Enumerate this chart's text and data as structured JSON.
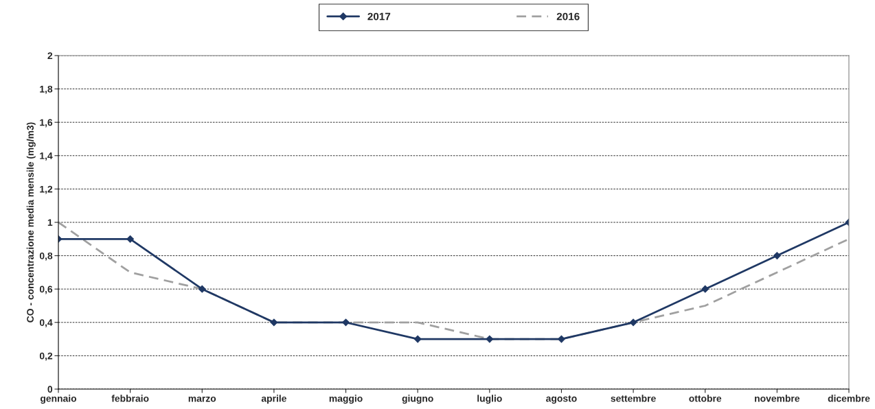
{
  "chart_data": {
    "type": "line",
    "ylabel": "CO - concentrazione media mensile (mg/m3)",
    "categories": [
      "gennaio",
      "febbraio",
      "marzo",
      "aprile",
      "maggio",
      "giugno",
      "luglio",
      "agosto",
      "settembre",
      "ottobre",
      "novembre",
      "dicembre"
    ],
    "series": [
      {
        "name": "2017",
        "color": "#1f3864",
        "marker": "diamond",
        "line_style": "solid",
        "values": [
          0.9,
          0.9,
          0.6,
          0.4,
          0.4,
          0.3,
          0.3,
          0.3,
          0.4,
          0.6,
          0.8,
          1.0
        ]
      },
      {
        "name": "2016",
        "color": "#a0a0a0",
        "marker": "none",
        "line_style": "dashed",
        "values": [
          1.0,
          0.7,
          0.6,
          0.4,
          0.4,
          0.4,
          0.3,
          0.3,
          0.4,
          0.5,
          0.7,
          0.9
        ]
      }
    ],
    "ylim": [
      0,
      2
    ],
    "yticks": [
      0,
      {
        "value": 0.2,
        "label": "0,2"
      },
      {
        "value": 0.4,
        "label": "0,4"
      },
      {
        "value": 0.6,
        "label": "0,6"
      },
      {
        "value": 0.8,
        "label": "0,8"
      },
      1,
      {
        "value": 1.2,
        "label": "1,2"
      },
      {
        "value": 1.4,
        "label": "1,4"
      },
      {
        "value": 1.6,
        "label": "1,6"
      },
      {
        "value": 1.8,
        "label": "1,8"
      },
      2
    ],
    "grid": "y",
    "legend": "top"
  }
}
